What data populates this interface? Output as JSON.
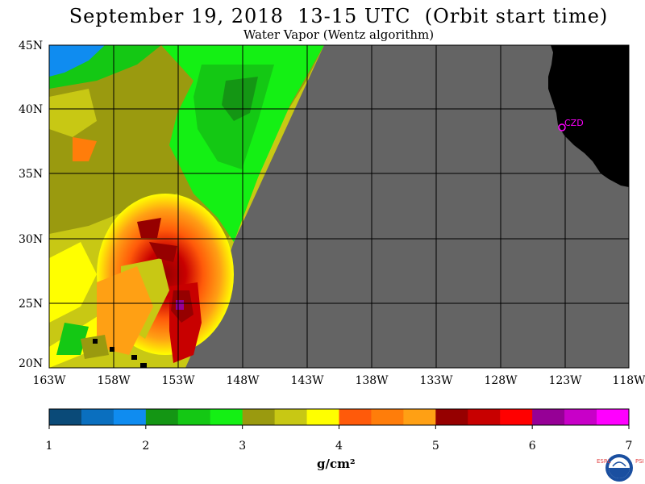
{
  "title": "September 19, 2018  13-15 UTC  (Orbit start time)",
  "subtitle": "Water Vapor (Wentz algorithm)",
  "map": {
    "lat_labels": [
      "45N",
      "40N",
      "35N",
      "30N",
      "25N",
      "20N"
    ],
    "lon_labels": [
      "163W",
      "158W",
      "153W",
      "148W",
      "143W",
      "138W",
      "133W",
      "128W",
      "123W",
      "118W"
    ],
    "station_label": "CZD",
    "no_data_color": "#646464",
    "land_color": "#000000"
  },
  "colorbar": {
    "colors": [
      "#0a4a78",
      "#0a6fbf",
      "#0f8cf0",
      "#149614",
      "#14c814",
      "#14f014",
      "#9a9a0f",
      "#c8c814",
      "#ffff00",
      "#ff5a0a",
      "#ff7d0a",
      "#ffa014",
      "#960000",
      "#c80000",
      "#ff0000",
      "#960096",
      "#c800c8",
      "#ff00ff"
    ],
    "tick_labels": [
      "1",
      "2",
      "3",
      "4",
      "5",
      "6",
      "7"
    ],
    "units": "g/cm²"
  },
  "logo": {
    "text_left": "ESRL",
    "text_right": "PSD"
  }
}
